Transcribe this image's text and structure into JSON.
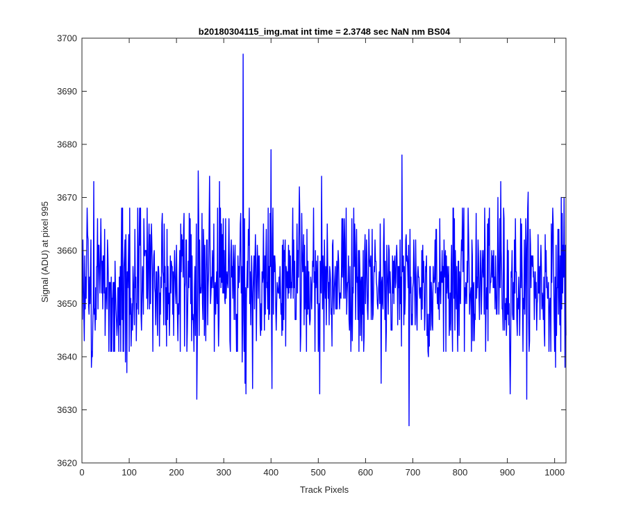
{
  "chart_data": {
    "type": "line",
    "title": "b20180304115_img.mat int time = 2.3748 sec  NaN nm BS04",
    "xlabel": "Track Pixels",
    "ylabel": "Signal (ADU) at pixel 995",
    "xlim": [
      0,
      1024
    ],
    "ylim": [
      3620,
      3700
    ],
    "xticks": [
      0,
      100,
      200,
      300,
      400,
      500,
      600,
      700,
      800,
      900,
      1000
    ],
    "yticks": [
      3620,
      3630,
      3640,
      3650,
      3660,
      3670,
      3680,
      3690,
      3700
    ],
    "grid": false,
    "line_color": "#0000ff",
    "series": [
      {
        "baseline": 3654,
        "noise_std": 7,
        "x_range": [
          1,
          1024
        ],
        "highlights": [
          {
            "x": 20,
            "y": 3638
          },
          {
            "x": 22,
            "y": 3640
          },
          {
            "x": 25,
            "y": 3673
          },
          {
            "x": 75,
            "y": 3646
          },
          {
            "x": 92,
            "y": 3639
          },
          {
            "x": 95,
            "y": 3637
          },
          {
            "x": 243,
            "y": 3632
          },
          {
            "x": 246,
            "y": 3675
          },
          {
            "x": 270,
            "y": 3674
          },
          {
            "x": 291,
            "y": 3673
          },
          {
            "x": 339,
            "y": 3639
          },
          {
            "x": 341,
            "y": 3697
          },
          {
            "x": 345,
            "y": 3635
          },
          {
            "x": 347,
            "y": 3633
          },
          {
            "x": 361,
            "y": 3634
          },
          {
            "x": 400,
            "y": 3679
          },
          {
            "x": 402,
            "y": 3634
          },
          {
            "x": 460,
            "y": 3672
          },
          {
            "x": 503,
            "y": 3633
          },
          {
            "x": 507,
            "y": 3674
          },
          {
            "x": 633,
            "y": 3635
          },
          {
            "x": 677,
            "y": 3678
          },
          {
            "x": 692,
            "y": 3627
          },
          {
            "x": 694,
            "y": 3664
          },
          {
            "x": 733,
            "y": 3640
          },
          {
            "x": 785,
            "y": 3668
          },
          {
            "x": 880,
            "y": 3670
          },
          {
            "x": 886,
            "y": 3673
          },
          {
            "x": 906,
            "y": 3633
          },
          {
            "x": 941,
            "y": 3632
          },
          {
            "x": 944,
            "y": 3671
          },
          {
            "x": 1002,
            "y": 3638
          },
          {
            "x": 1014,
            "y": 3670
          },
          {
            "x": 1020,
            "y": 3670
          },
          {
            "x": 1022,
            "y": 3638
          }
        ]
      }
    ]
  }
}
